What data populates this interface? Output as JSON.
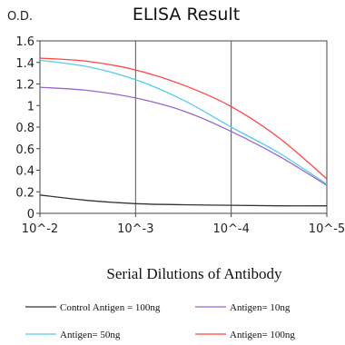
{
  "chart_data": {
    "type": "line",
    "title": "ELISA Result",
    "ylabel": "O.D.",
    "xlabel": "Serial Dilutions of Antibody",
    "x_tick_labels": [
      "10^-2",
      "10^-3",
      "10^-4",
      "10^-5"
    ],
    "y_tick_labels": [
      "0",
      "0.2",
      "0.4",
      "0.6",
      "0.8",
      "1",
      "1.2",
      "1.4",
      "1.6"
    ],
    "ylim": [
      0,
      1.6
    ],
    "x_scale": "log (decreasing concentration, 10^-2 to 10^-5)",
    "grid": "vertical lines at decades",
    "legend_placement": "bottom",
    "x": [
      0.01,
      0.00316,
      0.001,
      0.000316,
      0.0001,
      3.16e-05,
      1e-05
    ],
    "series": [
      {
        "name": "Control Antigen = 100ng",
        "color": "#333333",
        "values": [
          0.17,
          0.12,
          0.09,
          0.08,
          0.075,
          0.07,
          0.07
        ]
      },
      {
        "name": "Antigen= 10ng",
        "color": "#9966cc",
        "values": [
          1.17,
          1.14,
          1.07,
          0.95,
          0.76,
          0.53,
          0.26
        ]
      },
      {
        "name": "Antigen= 50ng",
        "color": "#55ccee",
        "values": [
          1.42,
          1.36,
          1.24,
          1.05,
          0.8,
          0.56,
          0.27
        ]
      },
      {
        "name": "Antigen= 100ng",
        "color": "#ff4444",
        "values": [
          1.44,
          1.41,
          1.33,
          1.19,
          0.99,
          0.7,
          0.32
        ]
      }
    ]
  }
}
